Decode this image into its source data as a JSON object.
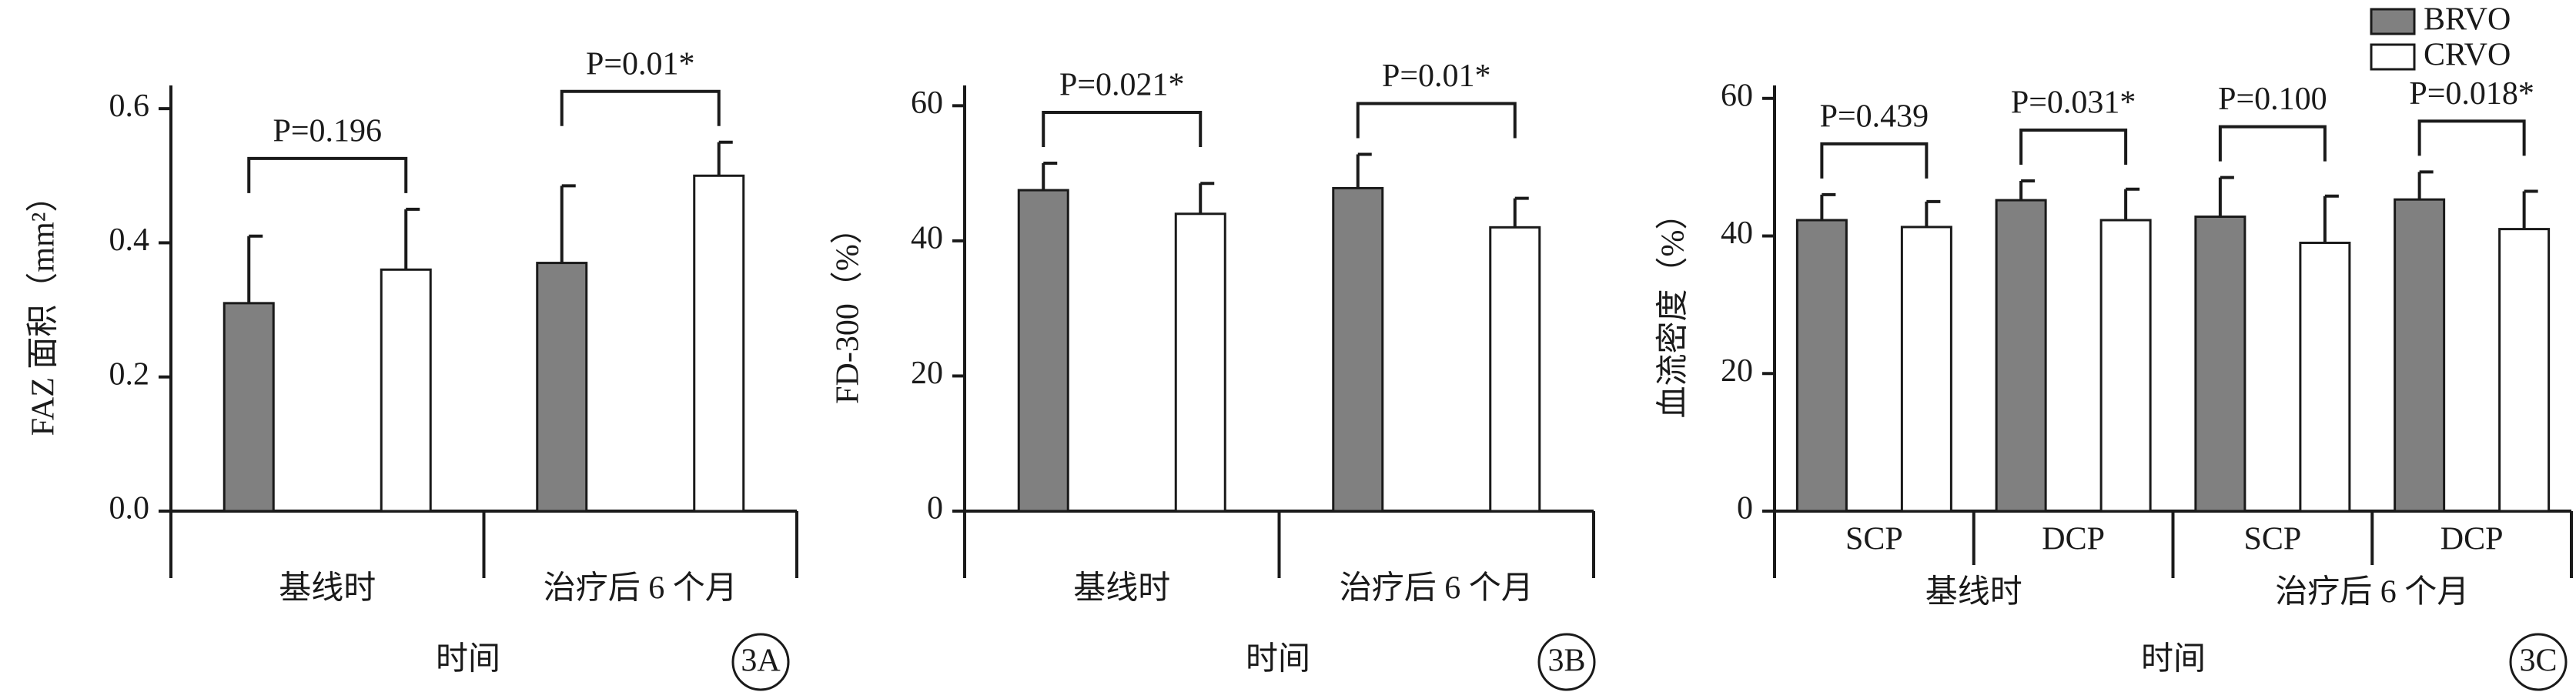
{
  "chart_data": [
    {
      "type": "bar",
      "y_label": "FAZ 面积（mm²）",
      "x_label": "时间",
      "panel_label": "3A",
      "categories": [
        "基线时",
        "治疗后 6 个月"
      ],
      "series": [
        {
          "color": "#808080",
          "values": [
            0.31,
            0.37
          ],
          "errors": [
            0.1,
            0.115
          ]
        },
        {
          "color": "#ffffff",
          "values": [
            0.36,
            0.5
          ],
          "errors": [
            0.09,
            0.05
          ]
        }
      ],
      "p_values": [
        "P=0.196",
        "P=0.01*"
      ],
      "ylim": [
        0,
        0.63
      ],
      "yticks": [
        {
          "value": 0,
          "label": "0.0"
        },
        0.2,
        0.4,
        0.6
      ]
    },
    {
      "type": "bar",
      "y_label": "FD-300（%）",
      "x_label": "时间",
      "panel_label": "3B",
      "categories": [
        "基线时",
        "治疗后 6 个月"
      ],
      "series": [
        {
          "color": "#808080",
          "values": [
            47.5,
            47.8
          ],
          "errors": [
            4,
            5
          ]
        },
        {
          "color": "#ffffff",
          "values": [
            44,
            42
          ],
          "errors": [
            4.5,
            4.3
          ]
        }
      ],
      "p_values": [
        "P=0.021*",
        "P=0.01*"
      ],
      "ylim": [
        0,
        63
      ],
      "yticks": [
        0,
        20,
        40,
        60
      ]
    },
    {
      "type": "bar",
      "y_label": "血流密度（%）",
      "x_label": "时间",
      "panel_label": "3C",
      "groups": [
        "基线时",
        "治疗后 6 个月"
      ],
      "categories": [
        "SCP",
        "DCP",
        "SCP",
        "DCP"
      ],
      "series": [
        {
          "name": "BRVO",
          "color": "#808080",
          "values": [
            42.3,
            45.2,
            42.8,
            45.3
          ],
          "errors": [
            3.7,
            2.8,
            5.7,
            4
          ]
        },
        {
          "name": "CRVO",
          "color": "#ffffff",
          "values": [
            41.3,
            42.3,
            39,
            41
          ],
          "errors": [
            3.7,
            4.5,
            6.8,
            5.5
          ]
        }
      ],
      "p_values": [
        "P=0.439",
        "P=0.031*",
        "P=0.100",
        "P=0.018*"
      ],
      "ylim": [
        0,
        63
      ],
      "yticks": [
        0,
        20,
        40,
        60
      ],
      "legend": "top-right"
    }
  ]
}
